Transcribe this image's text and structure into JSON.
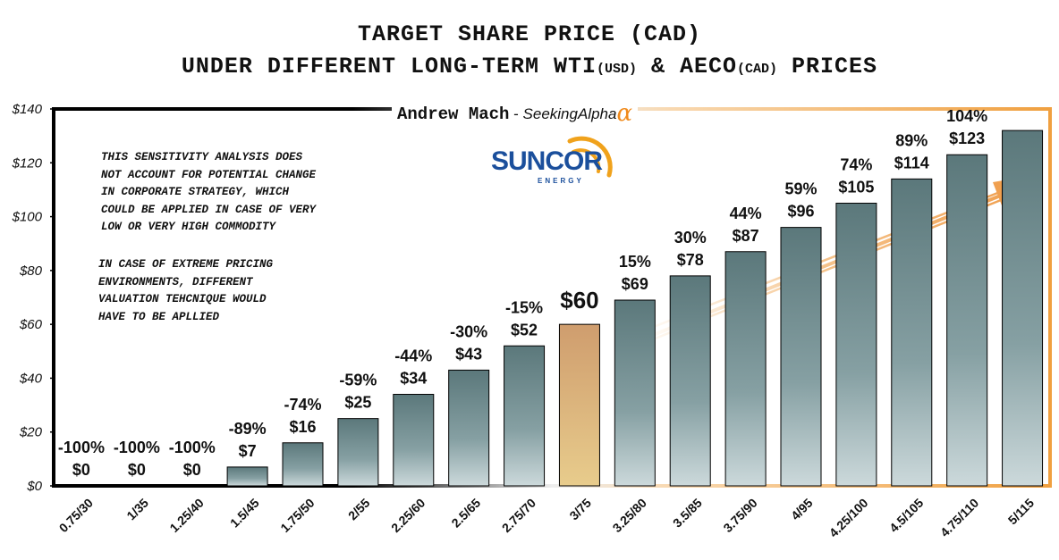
{
  "titles": {
    "line1": "TARGET SHARE PRICE (CAD)",
    "line2_a": "UNDER DIFFERENT LONG-TERM WTI",
    "line2_b": "(USD)",
    "line2_c": " & AECO",
    "line2_d": "(CAD)",
    "line2_e": " PRICES"
  },
  "byline": {
    "author": "Andrew Mach",
    "dash": " - ",
    "site": "SeekingAlpha",
    "alpha": "α"
  },
  "logo": {
    "name": "SUNCOR",
    "sub": "ENERGY",
    "color": "#1b4f9c",
    "sun_color": "#f0a21c"
  },
  "notes": {
    "note1": "THIS SENSITIVITY ANALYSIS DOES\nNOT ACCOUNT FOR POTENTIAL CHANGE\nIN CORPORATE STRATEGY, WHICH\nCOULD BE APPLIED IN CASE OF VERY\nLOW OR VERY HIGH COMMODITY",
    "note2": "IN CASE OF EXTREME PRICING\nENVIRONMENTS, DIFFERENT\nVALUATION TEHCNIQUE WOULD\nHAVE TO BE APLLIED"
  },
  "colors": {
    "bar_top": "#5d7b7e",
    "bar_bottom": "#c6d4d6",
    "highlight_top": "#d2a070",
    "highlight_bottom": "#e6c98a",
    "accent": "#f0a040"
  },
  "chart_data": {
    "type": "bar",
    "categories": [
      "0.75/30",
      "1/35",
      "1.25/40",
      "1.5/45",
      "1.75/50",
      "2/55",
      "2.25/60",
      "2.5/65",
      "2.75/70",
      "3/75",
      "3.25/80",
      "3.5/85",
      "3.75/90",
      "4/95",
      "4.25/100",
      "4.5/105",
      "4.75/110",
      "5/115"
    ],
    "values": [
      0,
      0,
      0,
      7,
      16,
      25,
      34,
      43,
      52,
      60,
      69,
      78,
      87,
      96,
      105,
      114,
      123,
      132
    ],
    "value_labels": [
      "$0",
      "$0",
      "$0",
      "$7",
      "$16",
      "$25",
      "$34",
      "$43",
      "$52",
      "$60",
      "$69",
      "$78",
      "$87",
      "$96",
      "$105",
      "$114",
      "$123",
      ""
    ],
    "pct_labels": [
      "-100%",
      "-100%",
      "-100%",
      "-89%",
      "-74%",
      "-59%",
      "-44%",
      "-30%",
      "-15%",
      "",
      "15%",
      "30%",
      "44%",
      "59%",
      "74%",
      "89%",
      "104%",
      ""
    ],
    "highlight_index": 9,
    "ylim": [
      0,
      140
    ],
    "yticks": [
      0,
      20,
      40,
      60,
      80,
      100,
      120,
      140
    ],
    "ytick_labels": [
      "$0",
      "$20",
      "$40",
      "$60",
      "$80",
      "$100",
      "$120",
      "$140"
    ],
    "grid": false
  }
}
